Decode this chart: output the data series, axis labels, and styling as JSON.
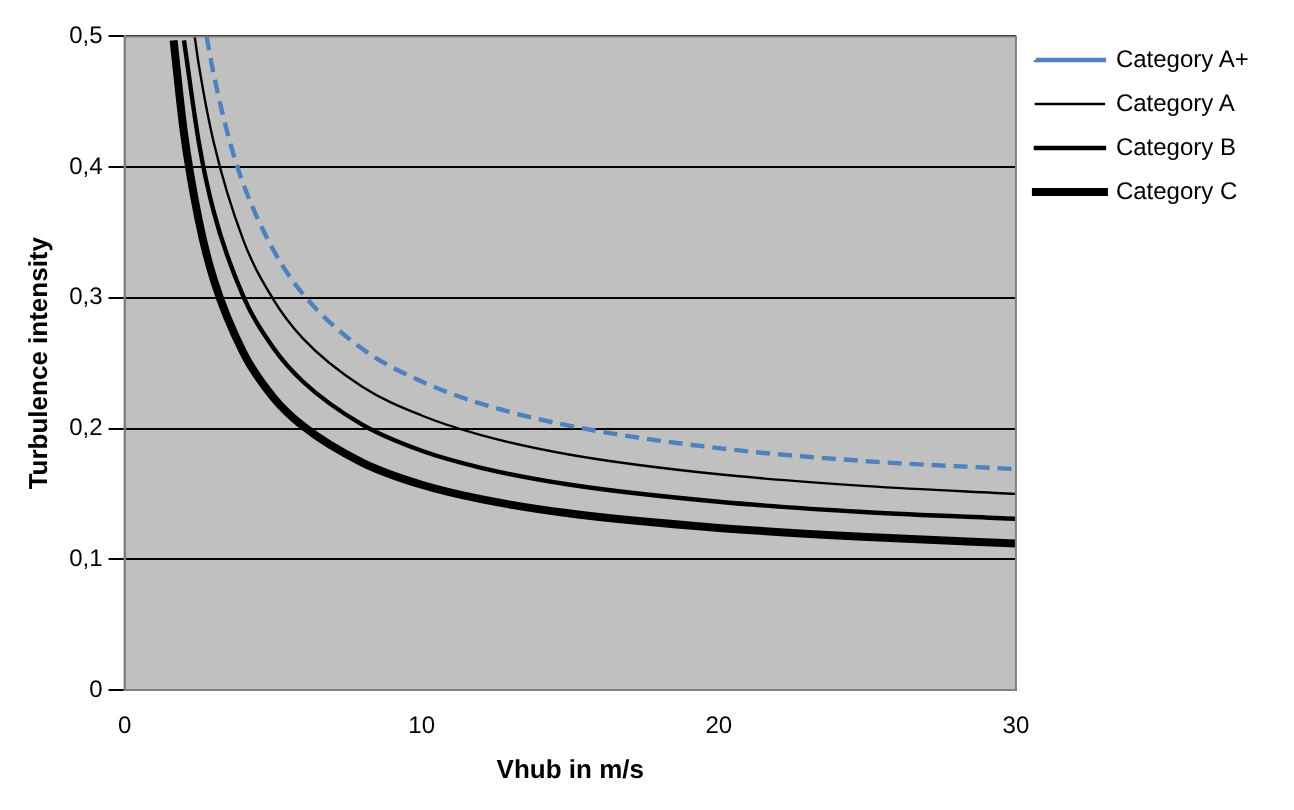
{
  "chart_data": {
    "type": "line",
    "xlabel": "Vhub in m/s",
    "ylabel": "Turbulence intensity",
    "xlim": [
      0,
      30
    ],
    "xticks": [
      0,
      10,
      20,
      30
    ],
    "ylim": [
      0,
      0.5
    ],
    "yticks": [
      {
        "value": 0,
        "label": "0"
      },
      {
        "value": 0.1,
        "label": "0,1"
      },
      {
        "value": 0.2,
        "label": "0,2"
      },
      {
        "value": 0.3,
        "label": "0,3"
      },
      {
        "value": 0.4,
        "label": "0,4"
      },
      {
        "value": 0.5,
        "label": "0,5"
      }
    ],
    "grid": "y",
    "legend": "right",
    "marker": "none",
    "series": [
      {
        "name": "Category A+",
        "color": "#4f81bd",
        "line_style": "dashed",
        "x": [
          2.76,
          3,
          3.5,
          4,
          5,
          6,
          8,
          10,
          12,
          15,
          20,
          25,
          30
        ],
        "values": [
          0.5,
          0.471,
          0.423,
          0.387,
          0.337,
          0.303,
          0.261,
          0.236,
          0.219,
          0.202,
          0.185,
          0.175,
          0.169
        ]
      },
      {
        "name": "Category A",
        "color": "#000000",
        "line_style": "solid",
        "x": [
          2.36,
          2.5,
          3,
          4,
          5,
          6,
          8,
          10,
          12,
          15,
          20,
          25,
          30
        ],
        "values": [
          0.5,
          0.478,
          0.419,
          0.344,
          0.299,
          0.269,
          0.232,
          0.21,
          0.195,
          0.18,
          0.165,
          0.156,
          0.15
        ]
      },
      {
        "name": "Category B",
        "color": "#000000",
        "line_style": "solid",
        "x": [
          2,
          2.5,
          3,
          4,
          5,
          6,
          8,
          10,
          12,
          15,
          20,
          25,
          30
        ],
        "values": [
          0.497,
          0.419,
          0.366,
          0.301,
          0.262,
          0.236,
          0.203,
          0.183,
          0.17,
          0.157,
          0.144,
          0.136,
          0.131
        ]
      },
      {
        "name": "Category C",
        "color": "#000000",
        "line_style": "solid",
        "x": [
          1.65,
          2,
          2.5,
          3,
          4,
          5,
          6,
          8,
          10,
          12,
          15,
          20,
          25,
          30
        ],
        "values": [
          0.497,
          0.426,
          0.359,
          0.314,
          0.258,
          0.224,
          0.202,
          0.174,
          0.157,
          0.146,
          0.135,
          0.124,
          0.117,
          0.112
        ]
      }
    ]
  }
}
